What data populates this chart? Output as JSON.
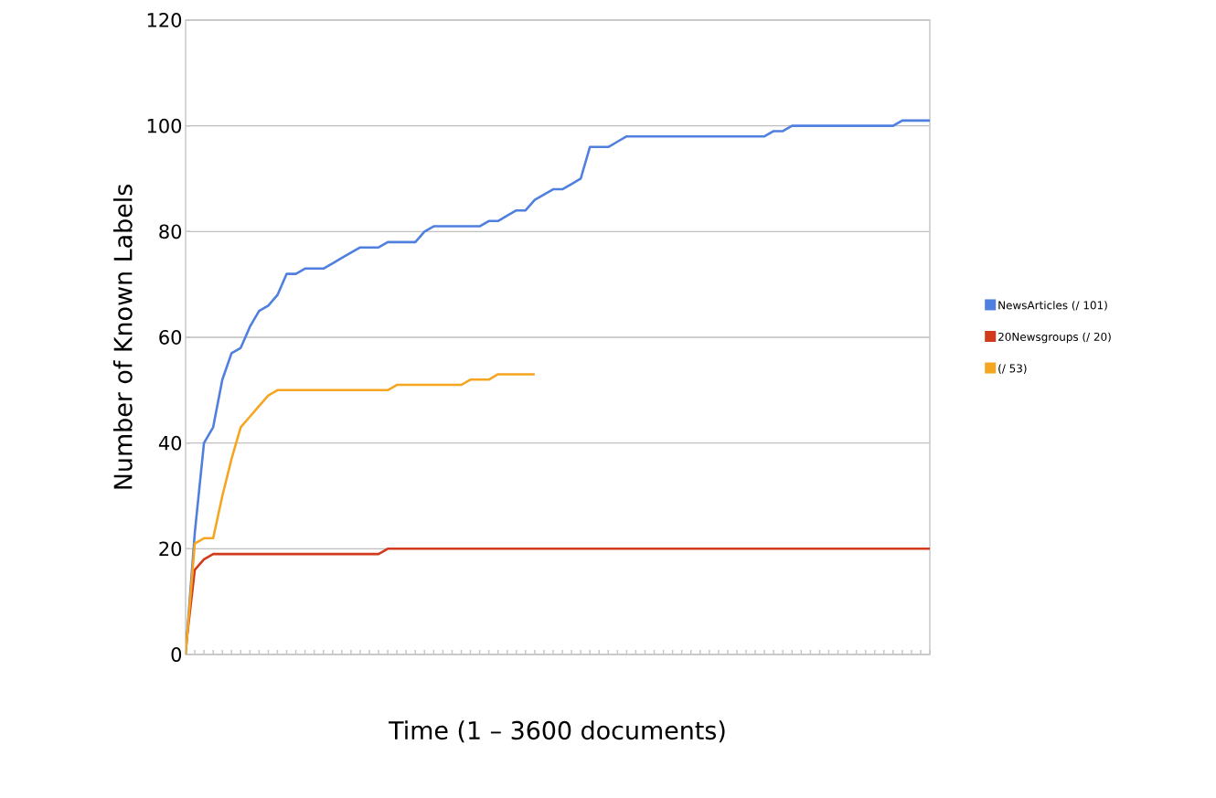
{
  "chart_data": {
    "type": "line",
    "xlabel": "Time (1 – 3600 documents)",
    "ylabel": "Number of Known Labels",
    "categories": [
      null,
      null,
      null,
      null,
      null,
      null,
      null,
      null,
      null,
      null,
      null,
      null,
      null,
      null,
      null,
      null,
      null,
      null,
      null,
      null,
      null,
      null,
      null,
      null,
      null,
      null,
      null,
      null,
      null,
      null,
      null,
      null,
      null,
      null,
      null,
      null,
      null,
      null,
      null,
      null,
      null,
      null,
      null,
      null,
      null,
      null,
      null,
      null,
      null,
      null,
      null,
      null,
      null,
      null,
      null,
      null,
      null,
      null,
      null,
      null,
      null,
      null,
      null,
      null,
      null,
      null,
      null,
      null,
      null,
      null,
      null,
      null,
      null,
      null,
      null,
      null,
      null,
      null,
      null,
      null,
      null,
      null
    ],
    "series": [
      {
        "name": "NewsArticles (/ 101)",
        "color": "#4f7fdf",
        "values": [
          0,
          23,
          40,
          43,
          52,
          57,
          58,
          62,
          65,
          66,
          68,
          72,
          72,
          73,
          73,
          73,
          74,
          75,
          76,
          77,
          77,
          77,
          78,
          78,
          78,
          78,
          80,
          81,
          81,
          81,
          81,
          81,
          81,
          82,
          82,
          83,
          84,
          84,
          86,
          87,
          88,
          88,
          89,
          90,
          96,
          96,
          96,
          97,
          98,
          98,
          98,
          98,
          98,
          98,
          98,
          98,
          98,
          98,
          98,
          98,
          98,
          98,
          98,
          98,
          99,
          99,
          100,
          100,
          100,
          100,
          100,
          100,
          100,
          100,
          100,
          100,
          100,
          100,
          101,
          101,
          101,
          101
        ]
      },
      {
        "name": "20Newsgroups (/ 20)",
        "color": "#d13b1c",
        "values": [
          1,
          16,
          18,
          19,
          19,
          19,
          19,
          19,
          19,
          19,
          19,
          19,
          19,
          19,
          19,
          19,
          19,
          19,
          19,
          19,
          19,
          19,
          20,
          20,
          20,
          20,
          20,
          20,
          20,
          20,
          20,
          20,
          20,
          20,
          20,
          20,
          20,
          20,
          20,
          20,
          20,
          20,
          20,
          20,
          20,
          20,
          20,
          20,
          20,
          20,
          20,
          20,
          20,
          20,
          20,
          20,
          20,
          20,
          20,
          20,
          20,
          20,
          20,
          20,
          20,
          20,
          20,
          20,
          20,
          20,
          20,
          20,
          20,
          20,
          20,
          20,
          20,
          20,
          20,
          20,
          20,
          20
        ]
      },
      {
        "name": "(/ 53)",
        "color": "#f5a51f",
        "values": [
          0,
          21,
          22,
          22,
          30,
          37,
          43,
          45,
          47,
          49,
          50,
          50,
          50,
          50,
          50,
          50,
          50,
          50,
          50,
          50,
          50,
          50,
          50,
          51,
          51,
          51,
          51,
          51,
          51,
          51,
          51,
          52,
          52,
          52,
          53,
          53,
          53,
          53,
          53,
          null,
          null,
          null,
          null,
          null,
          null,
          null,
          null,
          null,
          null,
          null,
          null,
          null,
          null,
          null,
          null,
          null,
          null,
          null,
          null,
          null,
          null,
          null,
          null,
          null,
          null,
          null,
          null,
          null,
          null,
          null,
          null,
          null,
          null,
          null,
          null,
          null,
          null,
          null,
          null,
          null,
          null,
          null
        ]
      }
    ],
    "ylim": [
      0,
      120
    ],
    "yticks": [
      0,
      20,
      40,
      60,
      80,
      100,
      120
    ],
    "grid": "y",
    "legend": "right",
    "marker": "none",
    "line_style": "solid"
  }
}
